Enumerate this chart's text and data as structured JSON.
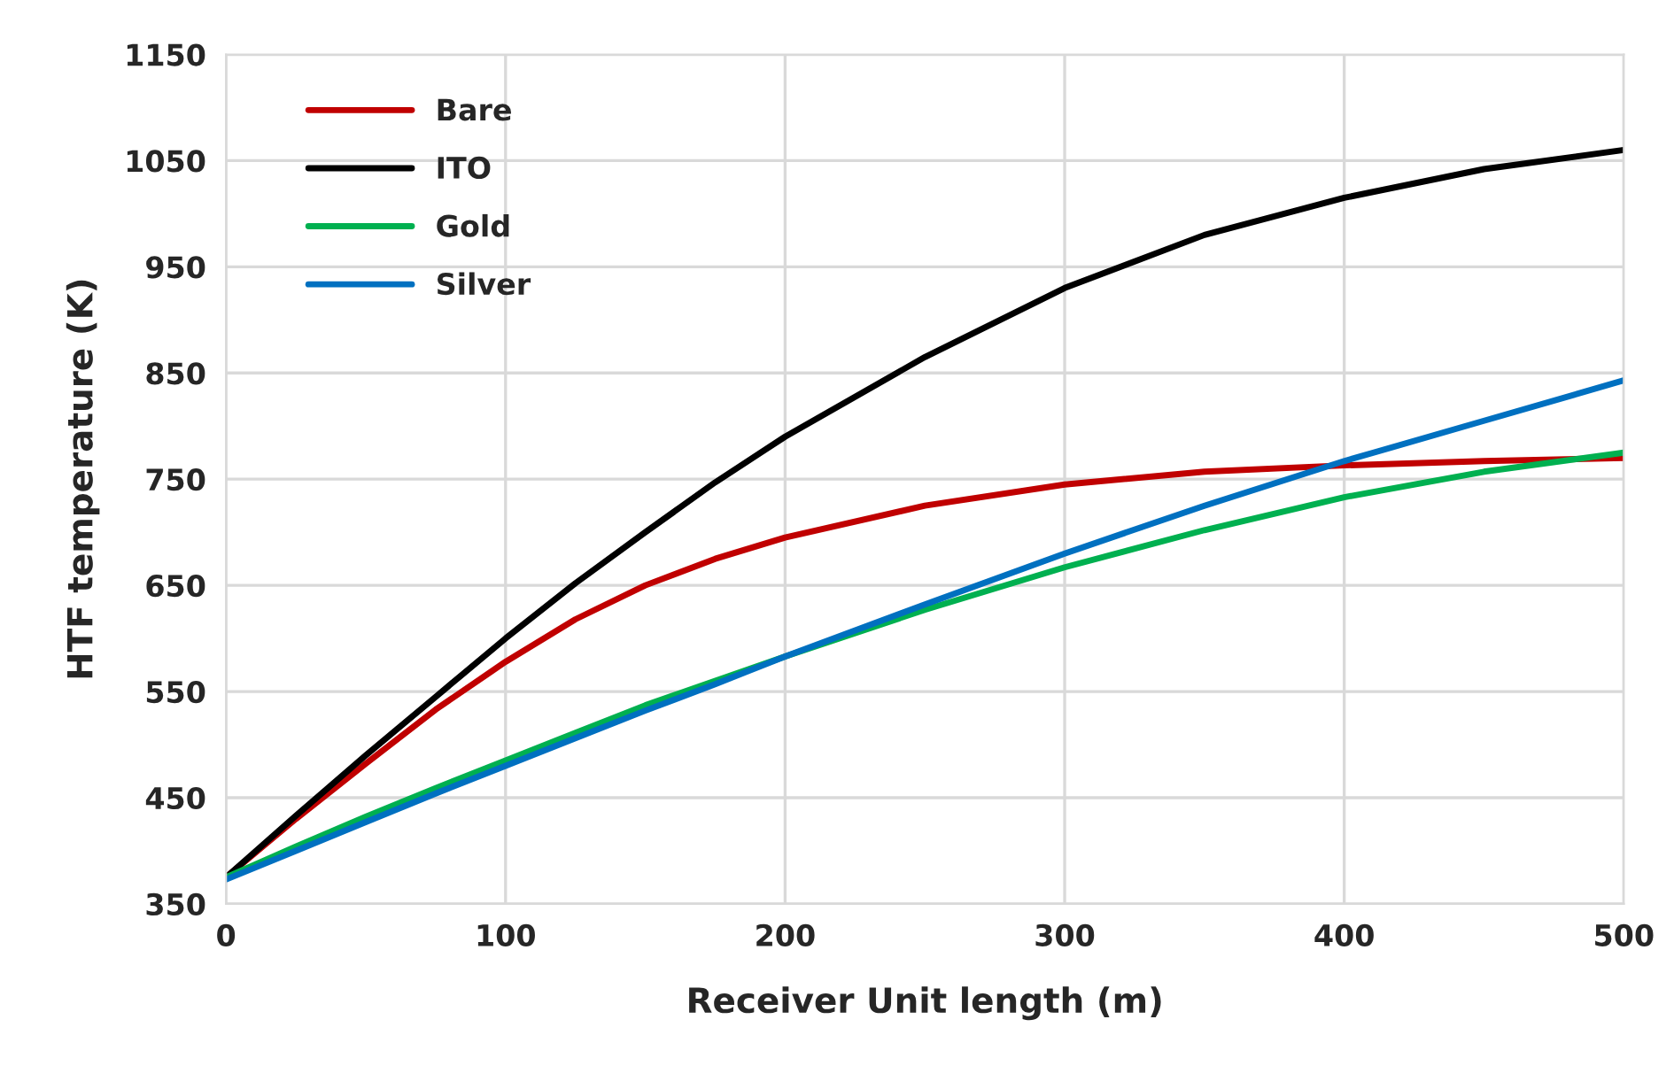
{
  "chart_data": {
    "type": "line",
    "xlabel": "Receiver Unit length (m)",
    "ylabel": "HTF temperature (K)",
    "x": [
      0,
      25,
      50,
      75,
      100,
      125,
      150,
      175,
      200,
      250,
      300,
      350,
      400,
      450,
      500
    ],
    "series": [
      {
        "name": "Bare",
        "color": "#c00000",
        "values": [
          375,
          430,
          482,
          533,
          578,
          618,
          650,
          675,
          695,
          725,
          745,
          757,
          763,
          767,
          770
        ]
      },
      {
        "name": "ITO",
        "color": "#000000",
        "values": [
          375,
          433,
          490,
          545,
          600,
          652,
          700,
          747,
          790,
          865,
          930,
          980,
          1015,
          1042,
          1060
        ]
      },
      {
        "name": "Gold",
        "color": "#00b050",
        "values": [
          375,
          404,
          432,
          459,
          485,
          511,
          537,
          560,
          583,
          627,
          667,
          702,
          733,
          757,
          775
        ]
      },
      {
        "name": "Silver",
        "color": "#0070c0",
        "values": [
          373,
          400,
          427,
          454,
          480,
          506,
          532,
          557,
          583,
          632,
          680,
          725,
          767,
          805,
          843
        ]
      }
    ],
    "xlim": [
      0,
      500
    ],
    "xticks": [
      0,
      100,
      200,
      300,
      400,
      500
    ],
    "ylim": [
      350,
      1150
    ],
    "yticks": [
      350,
      450,
      550,
      650,
      750,
      850,
      950,
      1050,
      1150
    ],
    "grid": true,
    "legend": "top left",
    "marker": "none",
    "line_style": "solid"
  }
}
